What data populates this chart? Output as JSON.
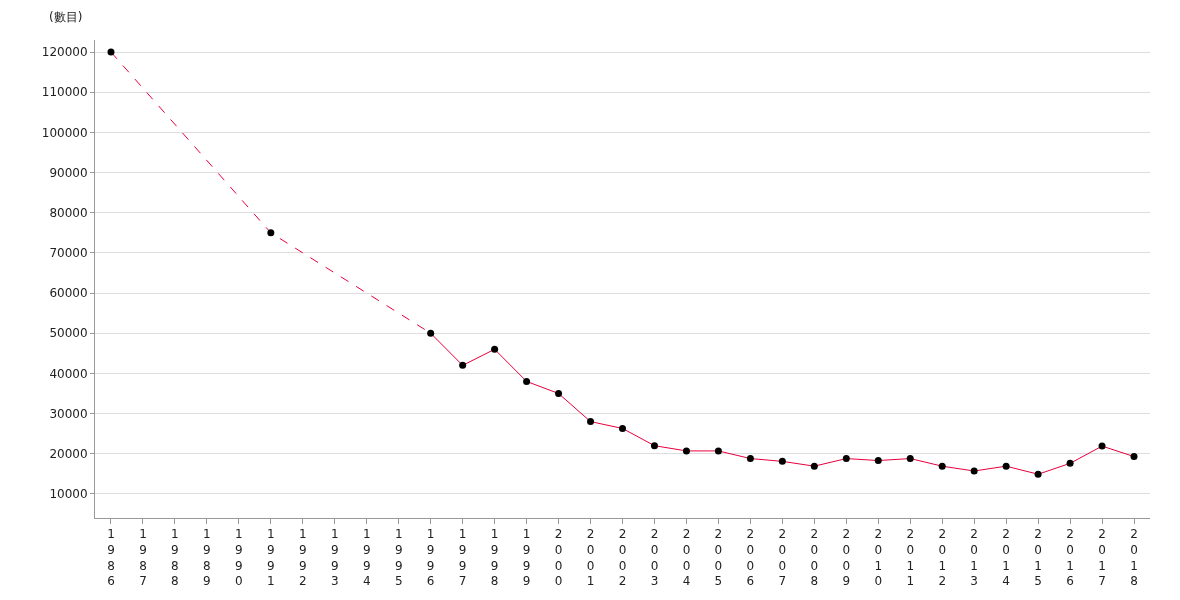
{
  "chart_data": {
    "type": "line",
    "ylabel": "(數目)",
    "categories": [
      "1986",
      "1987",
      "1988",
      "1989",
      "1990",
      "1991",
      "1992",
      "1993",
      "1994",
      "1995",
      "1996",
      "1997",
      "1998",
      "1999",
      "2000",
      "2001",
      "2002",
      "2003",
      "2004",
      "2005",
      "2006",
      "2007",
      "2008",
      "2009",
      "2010",
      "2011",
      "2012",
      "2013",
      "2014",
      "2015",
      "2016",
      "2017",
      "2018"
    ],
    "series": [
      {
        "color": "#e8003d",
        "line_style": "dashed",
        "marker": "none",
        "values": [
          120000,
          null,
          null,
          null,
          null,
          75000,
          null,
          null,
          null,
          null,
          50000,
          null,
          null,
          null,
          null,
          null,
          null,
          null,
          null,
          null,
          null,
          null,
          null,
          null,
          null,
          null,
          null,
          null,
          null,
          null,
          null,
          null,
          null
        ]
      },
      {
        "color": "#e8003d",
        "line_style": "solid",
        "marker": "circle",
        "colors": [
          "#000000",
          "#000000",
          "#000000",
          "#000000",
          "#000000",
          "#000000",
          "#000000",
          "#000000",
          "#000000",
          "#000000",
          "#000000",
          "#000000",
          "#000000",
          "#000000",
          "#000000",
          "#000000",
          "#000000",
          "#000000",
          "#000000",
          "#000000",
          "#000000",
          "#000000",
          "#000000",
          "#000000",
          "#000000",
          "#000000",
          "#000000",
          "#000000",
          "#000000",
          "#000000",
          "#000000",
          "#000000",
          "#000000"
        ],
        "values": [
          120000,
          null,
          null,
          null,
          null,
          75000,
          null,
          null,
          null,
          null,
          50000,
          42000,
          46000,
          38000,
          35000,
          28000,
          26300,
          22000,
          20700,
          20700,
          18800,
          18100,
          16900,
          18800,
          18300,
          18800,
          16900,
          15700,
          16900,
          14900,
          17600,
          21900,
          19300
        ]
      }
    ],
    "ylim": [
      4000,
      123000
    ],
    "yticks": [
      10000,
      20000,
      30000,
      40000,
      50000,
      60000,
      70000,
      80000,
      90000,
      100000,
      110000,
      120000
    ],
    "grid": "y"
  }
}
